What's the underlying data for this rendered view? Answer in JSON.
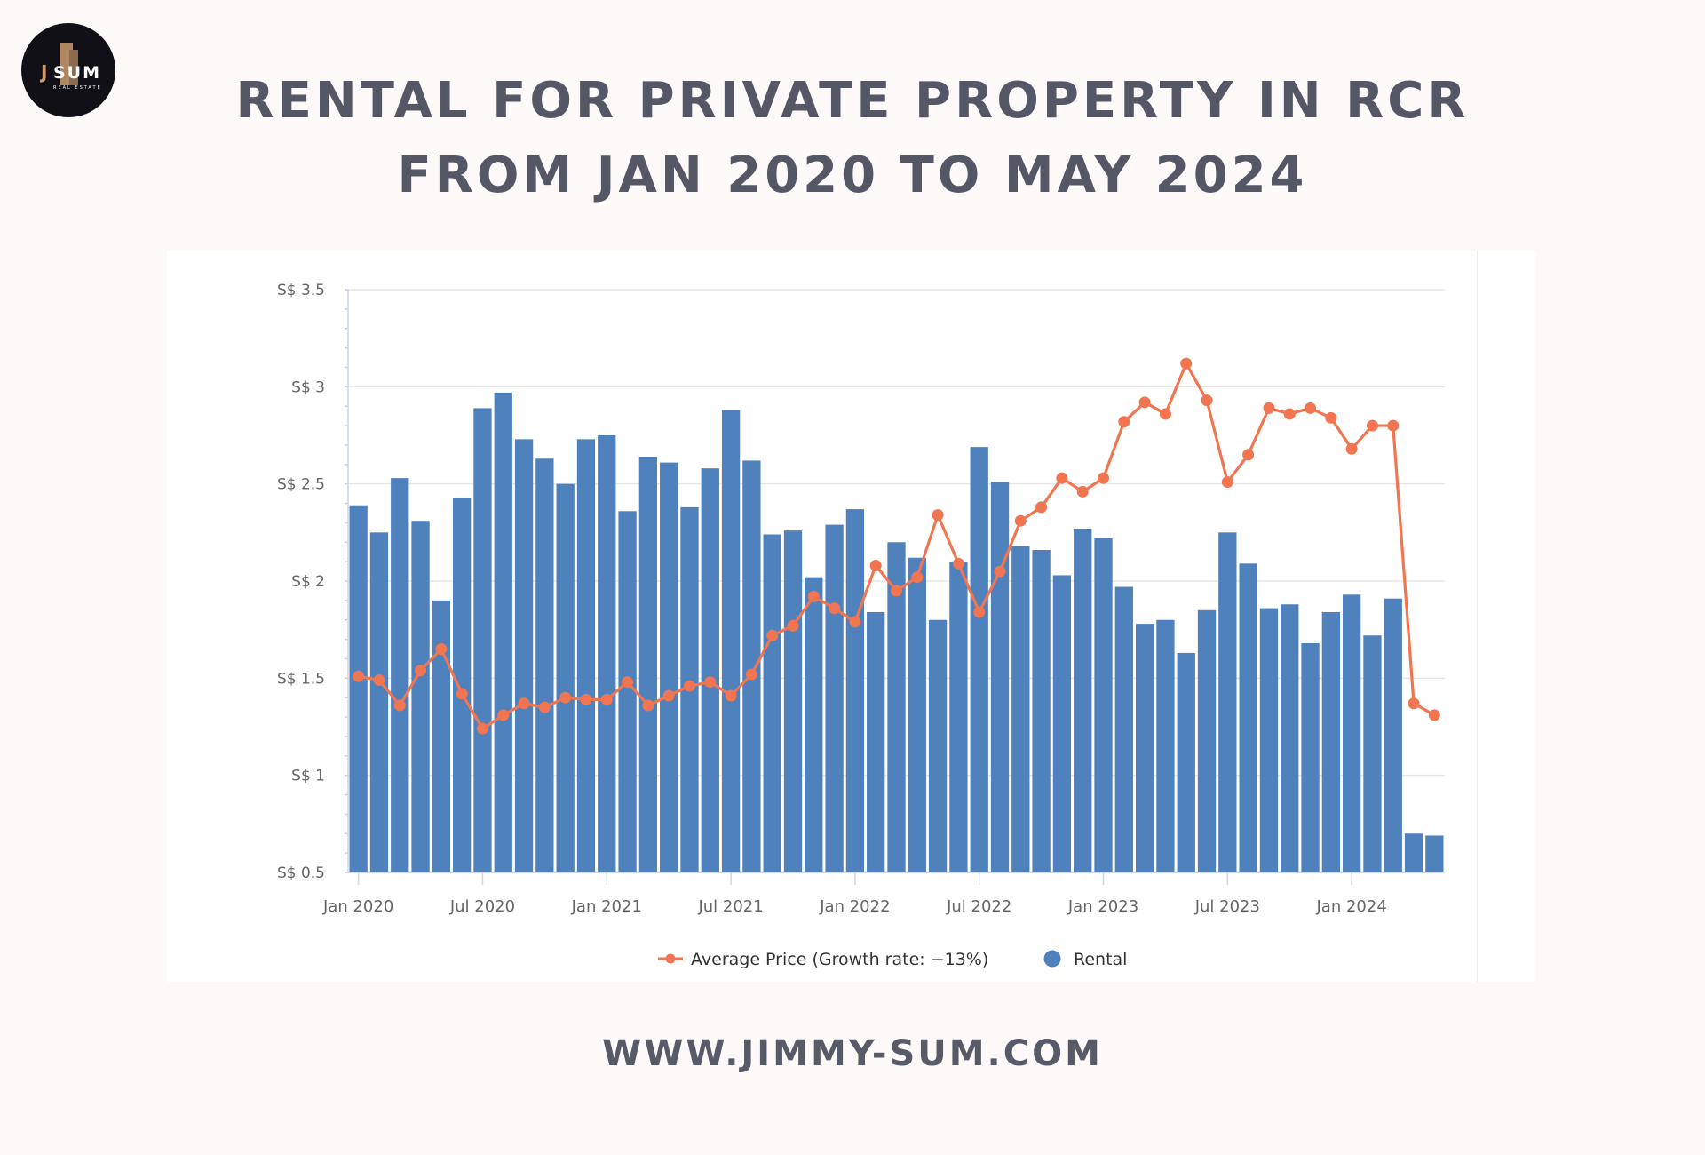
{
  "brand": {
    "logo_letters": "JSUM",
    "logo_subtitle": "REAL ESTATE"
  },
  "header": {
    "title_line1": "RENTAL FOR PRIVATE PROPERTY IN RCR",
    "title_line2": "FROM JAN 2020 TO MAY 2024"
  },
  "footer": {
    "website": "WWW.JIMMY-SUM.COM"
  },
  "colors": {
    "background": "#fcf9f8",
    "title": "#565766",
    "bar": "#4f81bd",
    "line": "#f07550",
    "grid": "#e6e6e6",
    "axis_text": "#666666"
  },
  "chart_data": {
    "type": "bar",
    "title": "RENTAL FOR PRIVATE PROPERTY IN RCR FROM JAN 2020 TO MAY 2024",
    "xlabel": "",
    "ylabel": "",
    "ylim": [
      0.5,
      3.5
    ],
    "yticks": [
      0.5,
      1,
      1.5,
      2,
      2.5,
      3,
      3.5
    ],
    "ytick_labels": [
      "S$ 0.5",
      "S$ 1",
      "S$ 1.5",
      "S$ 2",
      "S$ 2.5",
      "S$ 3",
      "S$ 3.5"
    ],
    "grid": true,
    "legend_position": "bottom-center",
    "x_start": "Jan 2020",
    "x_end": "May 2024",
    "xtick_labels": [
      {
        "index": 0,
        "label": "Jan 2020"
      },
      {
        "index": 6,
        "label": "Jul 2020"
      },
      {
        "index": 12,
        "label": "Jan 2021"
      },
      {
        "index": 18,
        "label": "Jul 2021"
      },
      {
        "index": 24,
        "label": "Jan 2022"
      },
      {
        "index": 30,
        "label": "Jul 2022"
      },
      {
        "index": 36,
        "label": "Jan 2023"
      },
      {
        "index": 42,
        "label": "Jul 2023"
      },
      {
        "index": 48,
        "label": "Jan 2024"
      }
    ],
    "categories": [
      "Jan 2020",
      "Feb 2020",
      "Mar 2020",
      "Apr 2020",
      "May 2020",
      "Jun 2020",
      "Jul 2020",
      "Aug 2020",
      "Sep 2020",
      "Oct 2020",
      "Nov 2020",
      "Dec 2020",
      "Jan 2021",
      "Feb 2021",
      "Mar 2021",
      "Apr 2021",
      "May 2021",
      "Jun 2021",
      "Jul 2021",
      "Aug 2021",
      "Sep 2021",
      "Oct 2021",
      "Nov 2021",
      "Dec 2021",
      "Jan 2022",
      "Feb 2022",
      "Mar 2022",
      "Apr 2022",
      "May 2022",
      "Jun 2022",
      "Jul 2022",
      "Aug 2022",
      "Sep 2022",
      "Oct 2022",
      "Nov 2022",
      "Dec 2022",
      "Jan 2023",
      "Feb 2023",
      "Mar 2023",
      "Apr 2023",
      "May 2023",
      "Jun 2023",
      "Jul 2023",
      "Aug 2023",
      "Sep 2023",
      "Oct 2023",
      "Nov 2023",
      "Dec 2023",
      "Jan 2024",
      "Feb 2024",
      "Mar 2024",
      "Apr 2024",
      "May 2024"
    ],
    "series": [
      {
        "name": "Rental",
        "type": "bar",
        "color": "#4f81bd",
        "values": [
          2.39,
          2.25,
          2.53,
          2.31,
          1.9,
          2.43,
          2.89,
          2.97,
          2.73,
          2.63,
          2.5,
          2.73,
          2.75,
          2.36,
          2.64,
          2.61,
          2.38,
          2.58,
          2.88,
          2.62,
          2.24,
          2.26,
          2.02,
          2.29,
          2.37,
          1.84,
          2.2,
          2.12,
          1.8,
          2.1,
          2.69,
          2.51,
          2.18,
          2.16,
          2.03,
          2.27,
          2.22,
          1.97,
          1.78,
          1.8,
          1.63,
          1.85,
          2.25,
          2.09,
          1.86,
          1.88,
          1.68,
          1.84,
          1.93,
          1.72,
          1.91,
          0.7,
          0.69
        ]
      },
      {
        "name": "Average Price (Growth rate: -13%)",
        "type": "line",
        "color": "#f07550",
        "values": [
          1.51,
          1.49,
          1.36,
          1.54,
          1.65,
          1.42,
          1.24,
          1.31,
          1.37,
          1.35,
          1.4,
          1.39,
          1.39,
          1.48,
          1.36,
          1.41,
          1.46,
          1.48,
          1.41,
          1.52,
          1.72,
          1.77,
          1.92,
          1.86,
          1.79,
          2.08,
          1.95,
          2.02,
          2.34,
          2.09,
          1.84,
          2.05,
          2.31,
          2.38,
          2.53,
          2.46,
          2.53,
          2.82,
          2.92,
          2.86,
          3.12,
          2.93,
          2.51,
          2.65,
          2.89,
          2.86,
          2.89,
          2.84,
          2.68,
          2.8,
          2.8,
          1.37,
          1.31
        ]
      }
    ],
    "legend": [
      {
        "label": "Average Price (Growth rate: −13%)",
        "marker": "line-dot",
        "color": "#f07550"
      },
      {
        "label": "Rental",
        "marker": "circle",
        "color": "#4f81bd"
      }
    ]
  }
}
